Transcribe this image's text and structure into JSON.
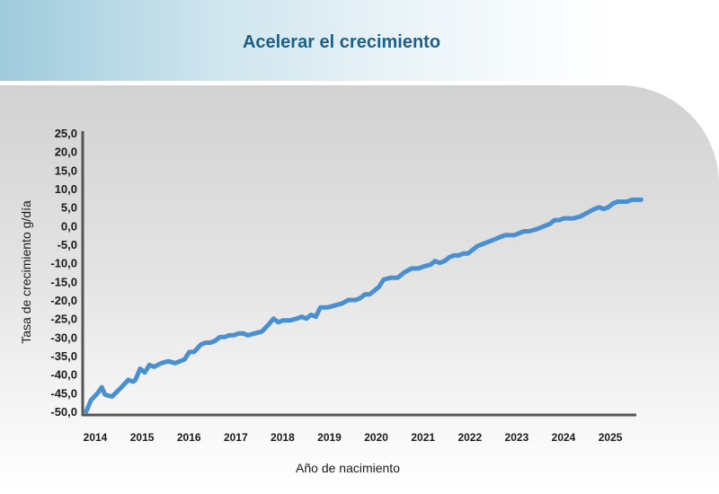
{
  "header": {
    "title": "Acelerar el crecimiento"
  },
  "chart_data": {
    "type": "line",
    "title": "Acelerar el crecimiento",
    "xlabel": "Año de nacimiento",
    "ylabel": "Tasa de crecimiento g/día",
    "xlim": [
      2014,
      2026
    ],
    "ylim": [
      -50,
      25
    ],
    "yticks": [
      25,
      20,
      15,
      10,
      5,
      0,
      -5,
      -10,
      -15,
      -20,
      -25,
      -30,
      -35,
      -40,
      -45,
      -50
    ],
    "ytick_labels": [
      "25,0",
      "20,0",
      "15,0",
      "10,0",
      "5,0",
      "0,0",
      "-5,0",
      "-10,0",
      "-15,0",
      "-20,0",
      "-25,0",
      "-30,0",
      "-35,0",
      "-40,0",
      "-45,0",
      "-50,0"
    ],
    "xticks": [
      "2014",
      "2015",
      "2016",
      "2017",
      "2018",
      "2019",
      "2020",
      "2021",
      "2022",
      "2023",
      "2024",
      "2025"
    ],
    "grid": false,
    "series_color": "#4a8fd0",
    "series": [
      {
        "x": [
          2014.0,
          2014.1,
          2014.25,
          2014.33,
          2014.4,
          2014.55,
          2014.75,
          2014.9,
          2015.0,
          2015.05,
          2015.15,
          2015.25,
          2015.35,
          2015.45,
          2015.6,
          2015.75,
          2015.9,
          2016.0,
          2016.1,
          2016.2,
          2016.3,
          2016.45,
          2016.55,
          2016.65,
          2016.75,
          2016.85,
          2016.95,
          2017.05,
          2017.15,
          2017.25,
          2017.35,
          2017.45,
          2017.6,
          2017.75,
          2017.9,
          2018.0,
          2018.1,
          2018.2,
          2018.35,
          2018.5,
          2018.6,
          2018.7,
          2018.8,
          2018.9,
          2019.0,
          2019.15,
          2019.3,
          2019.45,
          2019.6,
          2019.75,
          2019.85,
          2019.95,
          2020.05,
          2020.15,
          2020.25,
          2020.35,
          2020.5,
          2020.65,
          2020.8,
          2020.95,
          2021.1,
          2021.2,
          2021.35,
          2021.45,
          2021.55,
          2021.65,
          2021.75,
          2021.85,
          2021.95,
          2022.05,
          2022.15,
          2022.25,
          2022.35,
          2022.45,
          2022.55,
          2022.65,
          2022.75,
          2022.85,
          2022.95,
          2023.05,
          2023.15,
          2023.25,
          2023.35,
          2023.45,
          2023.6,
          2023.7,
          2023.8,
          2023.9,
          2024.0,
          2024.1,
          2024.2,
          2024.3,
          2024.4,
          2024.55,
          2024.7,
          2024.85,
          2024.95,
          2025.05,
          2025.15,
          2025.25,
          2025.35,
          2025.45,
          2025.55,
          2025.65,
          2025.75,
          2025.85
        ],
        "y": [
          -50.0,
          -47.0,
          -45.0,
          -43.5,
          -45.5,
          -46.0,
          -43.5,
          -41.5,
          -42.0,
          -41.5,
          -38.5,
          -39.5,
          -37.5,
          -38.0,
          -37.0,
          -36.5,
          -37.0,
          -36.5,
          -36.0,
          -34.0,
          -34.0,
          -32.0,
          -31.5,
          -31.5,
          -31.0,
          -30.0,
          -30.0,
          -29.5,
          -29.5,
          -29.0,
          -29.0,
          -29.5,
          -29.0,
          -28.5,
          -26.5,
          -25.0,
          -26.0,
          -25.5,
          -25.5,
          -25.0,
          -24.5,
          -25.0,
          -24.0,
          -24.5,
          -22.0,
          -22.0,
          -21.5,
          -21.0,
          -20.0,
          -20.0,
          -19.5,
          -18.5,
          -18.5,
          -17.5,
          -16.5,
          -14.5,
          -14.0,
          -14.0,
          -12.5,
          -11.5,
          -11.5,
          -11.0,
          -10.5,
          -9.5,
          -10.0,
          -9.5,
          -8.5,
          -8.0,
          -8.0,
          -7.5,
          -7.5,
          -6.5,
          -5.5,
          -5.0,
          -4.5,
          -4.0,
          -3.5,
          -3.0,
          -2.5,
          -2.5,
          -2.5,
          -2.0,
          -1.5,
          -1.5,
          -1.0,
          -0.5,
          0.0,
          0.5,
          1.5,
          1.5,
          2.0,
          2.0,
          2.0,
          2.5,
          3.5,
          4.5,
          5.0,
          4.5,
          5.0,
          6.0,
          6.5,
          6.5,
          6.5,
          7.0,
          7.0,
          7.0
        ]
      }
    ]
  }
}
